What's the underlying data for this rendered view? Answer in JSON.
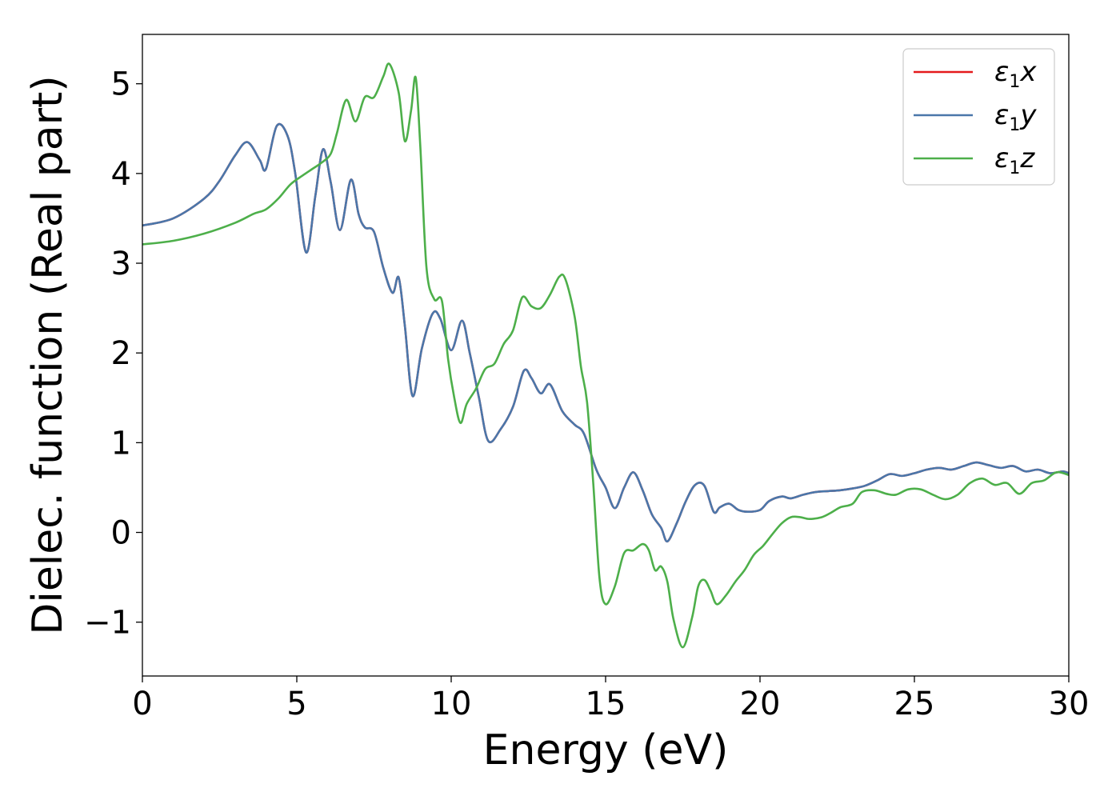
{
  "chart_data": {
    "type": "line",
    "xlabel": "Energy (eV)",
    "ylabel": "Dielec. function (Real part)",
    "xlim": [
      0,
      30
    ],
    "ylim": [
      -1.6,
      5.55
    ],
    "xticks": [
      0,
      5,
      10,
      15,
      20,
      25,
      30
    ],
    "xtick_labels": [
      "0",
      "5",
      "10",
      "15",
      "20",
      "25",
      "30"
    ],
    "yticks": [
      -1,
      0,
      1,
      2,
      3,
      4,
      5
    ],
    "ytick_labels": [
      "−1",
      "0",
      "1",
      "2",
      "3",
      "4",
      "5"
    ],
    "grid": false,
    "legend_position": "top-right",
    "series": [
      {
        "name": "ε1x",
        "legend_base": "ε",
        "legend_sub": "1",
        "legend_var": "x",
        "color": "#e41a1c",
        "x": [
          0,
          1,
          2,
          2.5,
          3,
          3.4,
          3.8,
          4.0,
          4.35,
          4.7,
          4.95,
          5.3,
          5.6,
          5.85,
          6.1,
          6.4,
          6.75,
          7.0,
          7.2,
          7.5,
          7.8,
          8.1,
          8.3,
          8.5,
          8.75,
          9.05,
          9.4,
          9.65,
          10.0,
          10.35,
          10.6,
          10.9,
          11.2,
          11.6,
          12.0,
          12.35,
          12.6,
          12.9,
          13.2,
          13.6,
          14.0,
          14.3,
          14.7,
          15.0,
          15.3,
          15.6,
          15.9,
          16.2,
          16.5,
          16.8,
          17.0,
          17.3,
          17.6,
          17.9,
          18.2,
          18.5,
          18.7,
          19.0,
          19.3,
          19.6,
          20.0,
          20.3,
          20.7,
          21.0,
          21.4,
          21.8,
          22.2,
          22.6,
          23.0,
          23.4,
          23.8,
          24.2,
          24.6,
          25.0,
          25.4,
          25.8,
          26.2,
          26.6,
          27.0,
          27.4,
          27.8,
          28.2,
          28.6,
          29.0,
          29.4,
          29.8,
          30.0
        ],
        "y": [
          3.42,
          3.5,
          3.72,
          3.92,
          4.2,
          4.35,
          4.15,
          4.05,
          4.53,
          4.42,
          4.0,
          3.12,
          3.75,
          4.27,
          3.9,
          3.37,
          3.93,
          3.55,
          3.4,
          3.35,
          2.95,
          2.67,
          2.84,
          2.3,
          1.52,
          2.05,
          2.44,
          2.38,
          2.03,
          2.36,
          2.0,
          1.5,
          1.02,
          1.15,
          1.4,
          1.8,
          1.72,
          1.55,
          1.65,
          1.35,
          1.2,
          1.1,
          0.7,
          0.5,
          0.27,
          0.5,
          0.67,
          0.47,
          0.2,
          0.05,
          -0.1,
          0.1,
          0.35,
          0.53,
          0.52,
          0.23,
          0.28,
          0.32,
          0.25,
          0.23,
          0.25,
          0.35,
          0.4,
          0.38,
          0.42,
          0.45,
          0.46,
          0.47,
          0.49,
          0.52,
          0.58,
          0.65,
          0.63,
          0.66,
          0.7,
          0.72,
          0.7,
          0.74,
          0.78,
          0.75,
          0.72,
          0.74,
          0.68,
          0.7,
          0.66,
          0.68,
          0.66
        ]
      },
      {
        "name": "ε1y",
        "legend_base": "ε",
        "legend_sub": "1",
        "legend_var": "y",
        "color": "#4a77aa",
        "x": [
          0,
          1,
          2,
          2.5,
          3,
          3.4,
          3.8,
          4.0,
          4.35,
          4.7,
          4.95,
          5.3,
          5.6,
          5.85,
          6.1,
          6.4,
          6.75,
          7.0,
          7.2,
          7.5,
          7.8,
          8.1,
          8.3,
          8.5,
          8.75,
          9.05,
          9.4,
          9.65,
          10.0,
          10.35,
          10.6,
          10.9,
          11.2,
          11.6,
          12.0,
          12.35,
          12.6,
          12.9,
          13.2,
          13.6,
          14.0,
          14.3,
          14.7,
          15.0,
          15.3,
          15.6,
          15.9,
          16.2,
          16.5,
          16.8,
          17.0,
          17.3,
          17.6,
          17.9,
          18.2,
          18.5,
          18.7,
          19.0,
          19.3,
          19.6,
          20.0,
          20.3,
          20.7,
          21.0,
          21.4,
          21.8,
          22.2,
          22.6,
          23.0,
          23.4,
          23.8,
          24.2,
          24.6,
          25.0,
          25.4,
          25.8,
          26.2,
          26.6,
          27.0,
          27.4,
          27.8,
          28.2,
          28.6,
          29.0,
          29.4,
          29.8,
          30.0
        ],
        "y": [
          3.42,
          3.5,
          3.72,
          3.92,
          4.2,
          4.35,
          4.15,
          4.05,
          4.53,
          4.42,
          4.0,
          3.12,
          3.75,
          4.27,
          3.9,
          3.37,
          3.93,
          3.55,
          3.4,
          3.35,
          2.95,
          2.67,
          2.84,
          2.3,
          1.52,
          2.05,
          2.44,
          2.38,
          2.03,
          2.36,
          2.0,
          1.5,
          1.02,
          1.15,
          1.4,
          1.8,
          1.72,
          1.55,
          1.65,
          1.35,
          1.2,
          1.1,
          0.7,
          0.5,
          0.27,
          0.5,
          0.67,
          0.47,
          0.2,
          0.05,
          -0.1,
          0.1,
          0.35,
          0.53,
          0.52,
          0.23,
          0.28,
          0.32,
          0.25,
          0.23,
          0.25,
          0.35,
          0.4,
          0.38,
          0.42,
          0.45,
          0.46,
          0.47,
          0.49,
          0.52,
          0.58,
          0.65,
          0.63,
          0.66,
          0.7,
          0.72,
          0.7,
          0.74,
          0.78,
          0.75,
          0.72,
          0.74,
          0.68,
          0.7,
          0.66,
          0.68,
          0.66
        ]
      },
      {
        "name": "ε1z",
        "legend_base": "ε",
        "legend_sub": "1",
        "legend_var": "z",
        "color": "#4daf4a",
        "x": [
          0,
          1,
          2,
          3,
          3.6,
          4.0,
          4.4,
          4.8,
          5.2,
          5.5,
          5.8,
          6.1,
          6.3,
          6.6,
          6.9,
          7.2,
          7.5,
          7.8,
          8.0,
          8.3,
          8.5,
          8.7,
          8.85,
          9.0,
          9.2,
          9.45,
          9.7,
          9.9,
          10.1,
          10.3,
          10.5,
          10.8,
          11.1,
          11.4,
          11.7,
          12.0,
          12.3,
          12.6,
          12.9,
          13.2,
          13.5,
          13.7,
          14.0,
          14.2,
          14.4,
          14.6,
          14.8,
          15.0,
          15.3,
          15.6,
          15.9,
          16.2,
          16.4,
          16.6,
          16.8,
          17.0,
          17.2,
          17.5,
          17.8,
          18.0,
          18.2,
          18.4,
          18.6,
          18.9,
          19.2,
          19.5,
          19.8,
          20.1,
          20.4,
          20.7,
          21.0,
          21.3,
          21.6,
          22.0,
          22.3,
          22.6,
          23.0,
          23.3,
          23.7,
          24.1,
          24.4,
          24.8,
          25.2,
          25.6,
          26.0,
          26.4,
          26.8,
          27.2,
          27.6,
          28.0,
          28.4,
          28.8,
          29.2,
          29.6,
          30.0
        ],
        "y": [
          3.21,
          3.25,
          3.33,
          3.45,
          3.55,
          3.6,
          3.72,
          3.88,
          3.98,
          4.05,
          4.12,
          4.22,
          4.45,
          4.82,
          4.58,
          4.85,
          4.85,
          5.08,
          5.22,
          4.9,
          4.36,
          4.7,
          5.07,
          4.3,
          2.95,
          2.6,
          2.58,
          1.93,
          1.5,
          1.22,
          1.43,
          1.6,
          1.82,
          1.88,
          2.1,
          2.25,
          2.62,
          2.52,
          2.5,
          2.65,
          2.85,
          2.82,
          2.4,
          1.85,
          1.45,
          0.55,
          -0.5,
          -0.8,
          -0.6,
          -0.23,
          -0.2,
          -0.13,
          -0.2,
          -0.42,
          -0.38,
          -0.55,
          -0.97,
          -1.28,
          -0.95,
          -0.6,
          -0.53,
          -0.65,
          -0.8,
          -0.7,
          -0.55,
          -0.42,
          -0.25,
          -0.15,
          -0.02,
          0.1,
          0.17,
          0.17,
          0.15,
          0.17,
          0.22,
          0.28,
          0.32,
          0.45,
          0.47,
          0.43,
          0.42,
          0.48,
          0.48,
          0.42,
          0.37,
          0.42,
          0.55,
          0.6,
          0.53,
          0.55,
          0.43,
          0.55,
          0.58,
          0.67,
          0.64
        ]
      }
    ]
  }
}
